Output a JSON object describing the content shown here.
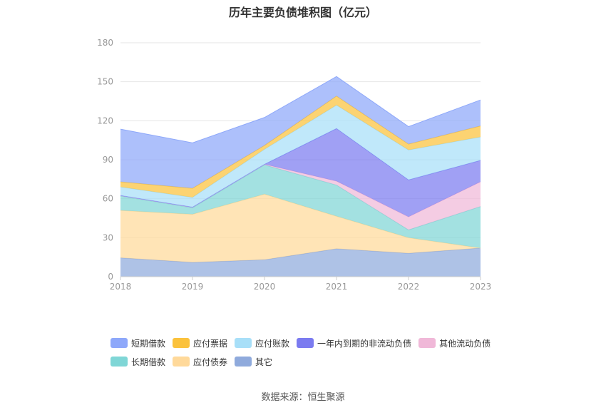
{
  "chart_data": {
    "type": "area",
    "stacked": true,
    "title": "历年主要负债堆积图（亿元）",
    "categories": [
      "2018",
      "2019",
      "2020",
      "2021",
      "2022",
      "2023"
    ],
    "ylim": [
      0,
      180
    ],
    "yticks": [
      0,
      30,
      60,
      90,
      120,
      150,
      180
    ],
    "grid": true,
    "legend_position": "bottom",
    "series": [
      {
        "name": "其它",
        "color": "#8faadc",
        "values": [
          14.5,
          11,
          13,
          21.5,
          18,
          22
        ]
      },
      {
        "name": "应付债券",
        "color": "#ffd99a",
        "values": [
          36.5,
          37,
          50.5,
          25,
          12,
          0
        ]
      },
      {
        "name": "长期借款",
        "color": "#7fd6d6",
        "values": [
          11,
          5,
          22.5,
          24,
          6,
          32
        ]
      },
      {
        "name": "其他流动负债",
        "color": "#f0b8d8",
        "values": [
          0.5,
          0.5,
          0.5,
          3,
          10,
          19
        ]
      },
      {
        "name": "一年内到期的非流动负债",
        "color": "#7b7bf0",
        "values": [
          0,
          0,
          0,
          40.5,
          28.5,
          16.5
        ]
      },
      {
        "name": "应付账款",
        "color": "#a8dff8",
        "values": [
          6.5,
          7.5,
          11.5,
          18,
          23,
          18
        ]
      },
      {
        "name": "应付票据",
        "color": "#fbc23c",
        "values": [
          4,
          7,
          3,
          7,
          4.5,
          8.5
        ]
      },
      {
        "name": "短期借款",
        "color": "#8ea8fa",
        "values": [
          40.5,
          35,
          21.5,
          15,
          13.5,
          20
        ]
      }
    ],
    "legend_order": [
      "短期借款",
      "应付票据",
      "应付账款",
      "一年内到期的非流动负债",
      "其他流动负债",
      "长期借款",
      "应付债券",
      "其它"
    ]
  },
  "source": "数据来源：恒生聚源"
}
